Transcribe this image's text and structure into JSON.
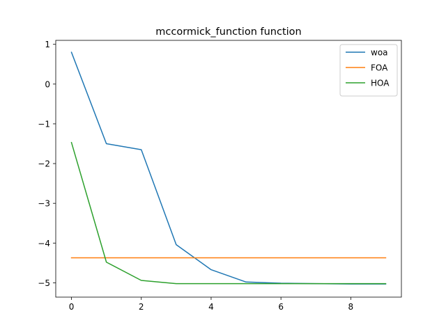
{
  "chart_data": {
    "type": "line",
    "title": "mccormick_function function",
    "xlabel": "",
    "ylabel": "",
    "x": [
      0,
      1,
      2,
      3,
      4,
      5,
      6,
      7,
      8,
      9
    ],
    "xlim": [
      -0.45,
      9.45
    ],
    "ylim": [
      -5.36,
      1.1
    ],
    "xticks": [
      0,
      2,
      4,
      6,
      8
    ],
    "yticks": [
      1,
      0,
      -1,
      -2,
      -3,
      -4,
      -5
    ],
    "ytick_labels": [
      "1",
      "0",
      "−1",
      "−2",
      "−3",
      "−4",
      "−5"
    ],
    "grid": false,
    "legend_position": "top-right",
    "series": [
      {
        "name": "woa",
        "color": "#1f77b4",
        "values": [
          0.8,
          -1.5,
          -1.65,
          -4.04,
          -4.67,
          -4.98,
          -5.01,
          -5.02,
          -5.03,
          -5.03
        ]
      },
      {
        "name": "FOA",
        "color": "#ff7f0e",
        "values": [
          -4.37,
          -4.37,
          -4.37,
          -4.37,
          -4.37,
          -4.37,
          -4.37,
          -4.37,
          -4.37,
          -4.37
        ]
      },
      {
        "name": "HOA",
        "color": "#2ca02c",
        "values": [
          -1.47,
          -4.48,
          -4.94,
          -5.02,
          -5.02,
          -5.02,
          -5.02,
          -5.02,
          -5.02,
          -5.02
        ]
      }
    ]
  }
}
